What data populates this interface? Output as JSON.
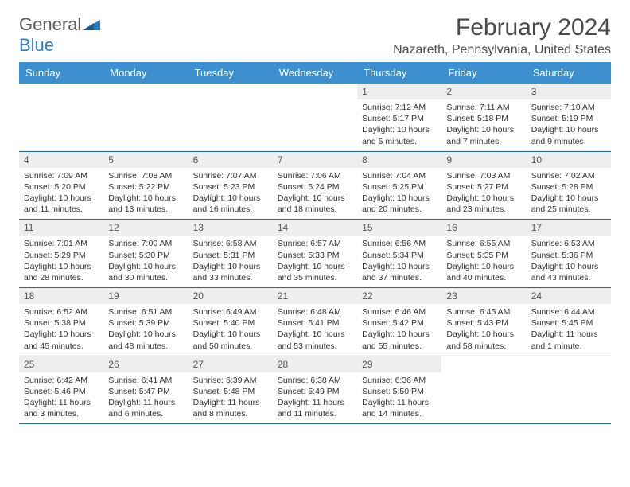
{
  "brand": {
    "name_part1": "General",
    "name_part2": "Blue"
  },
  "title": {
    "month": "February 2024",
    "location": "Nazareth, Pennsylvania, United States"
  },
  "colors": {
    "header_bg": "#3d8fcf",
    "daynum_bg": "#eceef0",
    "week_border": "#2960a0",
    "text": "#333333"
  },
  "day_names": [
    "Sunday",
    "Monday",
    "Tuesday",
    "Wednesday",
    "Thursday",
    "Friday",
    "Saturday"
  ],
  "weeks": [
    [
      null,
      null,
      null,
      null,
      {
        "n": "1",
        "sr": "7:12 AM",
        "ss": "5:17 PM",
        "dl": "10 hours and 5 minutes."
      },
      {
        "n": "2",
        "sr": "7:11 AM",
        "ss": "5:18 PM",
        "dl": "10 hours and 7 minutes."
      },
      {
        "n": "3",
        "sr": "7:10 AM",
        "ss": "5:19 PM",
        "dl": "10 hours and 9 minutes."
      }
    ],
    [
      {
        "n": "4",
        "sr": "7:09 AM",
        "ss": "5:20 PM",
        "dl": "10 hours and 11 minutes."
      },
      {
        "n": "5",
        "sr": "7:08 AM",
        "ss": "5:22 PM",
        "dl": "10 hours and 13 minutes."
      },
      {
        "n": "6",
        "sr": "7:07 AM",
        "ss": "5:23 PM",
        "dl": "10 hours and 16 minutes."
      },
      {
        "n": "7",
        "sr": "7:06 AM",
        "ss": "5:24 PM",
        "dl": "10 hours and 18 minutes."
      },
      {
        "n": "8",
        "sr": "7:04 AM",
        "ss": "5:25 PM",
        "dl": "10 hours and 20 minutes."
      },
      {
        "n": "9",
        "sr": "7:03 AM",
        "ss": "5:27 PM",
        "dl": "10 hours and 23 minutes."
      },
      {
        "n": "10",
        "sr": "7:02 AM",
        "ss": "5:28 PM",
        "dl": "10 hours and 25 minutes."
      }
    ],
    [
      {
        "n": "11",
        "sr": "7:01 AM",
        "ss": "5:29 PM",
        "dl": "10 hours and 28 minutes."
      },
      {
        "n": "12",
        "sr": "7:00 AM",
        "ss": "5:30 PM",
        "dl": "10 hours and 30 minutes."
      },
      {
        "n": "13",
        "sr": "6:58 AM",
        "ss": "5:31 PM",
        "dl": "10 hours and 33 minutes."
      },
      {
        "n": "14",
        "sr": "6:57 AM",
        "ss": "5:33 PM",
        "dl": "10 hours and 35 minutes."
      },
      {
        "n": "15",
        "sr": "6:56 AM",
        "ss": "5:34 PM",
        "dl": "10 hours and 37 minutes."
      },
      {
        "n": "16",
        "sr": "6:55 AM",
        "ss": "5:35 PM",
        "dl": "10 hours and 40 minutes."
      },
      {
        "n": "17",
        "sr": "6:53 AM",
        "ss": "5:36 PM",
        "dl": "10 hours and 43 minutes."
      }
    ],
    [
      {
        "n": "18",
        "sr": "6:52 AM",
        "ss": "5:38 PM",
        "dl": "10 hours and 45 minutes."
      },
      {
        "n": "19",
        "sr": "6:51 AM",
        "ss": "5:39 PM",
        "dl": "10 hours and 48 minutes."
      },
      {
        "n": "20",
        "sr": "6:49 AM",
        "ss": "5:40 PM",
        "dl": "10 hours and 50 minutes."
      },
      {
        "n": "21",
        "sr": "6:48 AM",
        "ss": "5:41 PM",
        "dl": "10 hours and 53 minutes."
      },
      {
        "n": "22",
        "sr": "6:46 AM",
        "ss": "5:42 PM",
        "dl": "10 hours and 55 minutes."
      },
      {
        "n": "23",
        "sr": "6:45 AM",
        "ss": "5:43 PM",
        "dl": "10 hours and 58 minutes."
      },
      {
        "n": "24",
        "sr": "6:44 AM",
        "ss": "5:45 PM",
        "dl": "11 hours and 1 minute."
      }
    ],
    [
      {
        "n": "25",
        "sr": "6:42 AM",
        "ss": "5:46 PM",
        "dl": "11 hours and 3 minutes."
      },
      {
        "n": "26",
        "sr": "6:41 AM",
        "ss": "5:47 PM",
        "dl": "11 hours and 6 minutes."
      },
      {
        "n": "27",
        "sr": "6:39 AM",
        "ss": "5:48 PM",
        "dl": "11 hours and 8 minutes."
      },
      {
        "n": "28",
        "sr": "6:38 AM",
        "ss": "5:49 PM",
        "dl": "11 hours and 11 minutes."
      },
      {
        "n": "29",
        "sr": "6:36 AM",
        "ss": "5:50 PM",
        "dl": "11 hours and 14 minutes."
      },
      null,
      null
    ]
  ],
  "labels": {
    "sunrise": "Sunrise:",
    "sunset": "Sunset:",
    "daylight": "Daylight:"
  }
}
